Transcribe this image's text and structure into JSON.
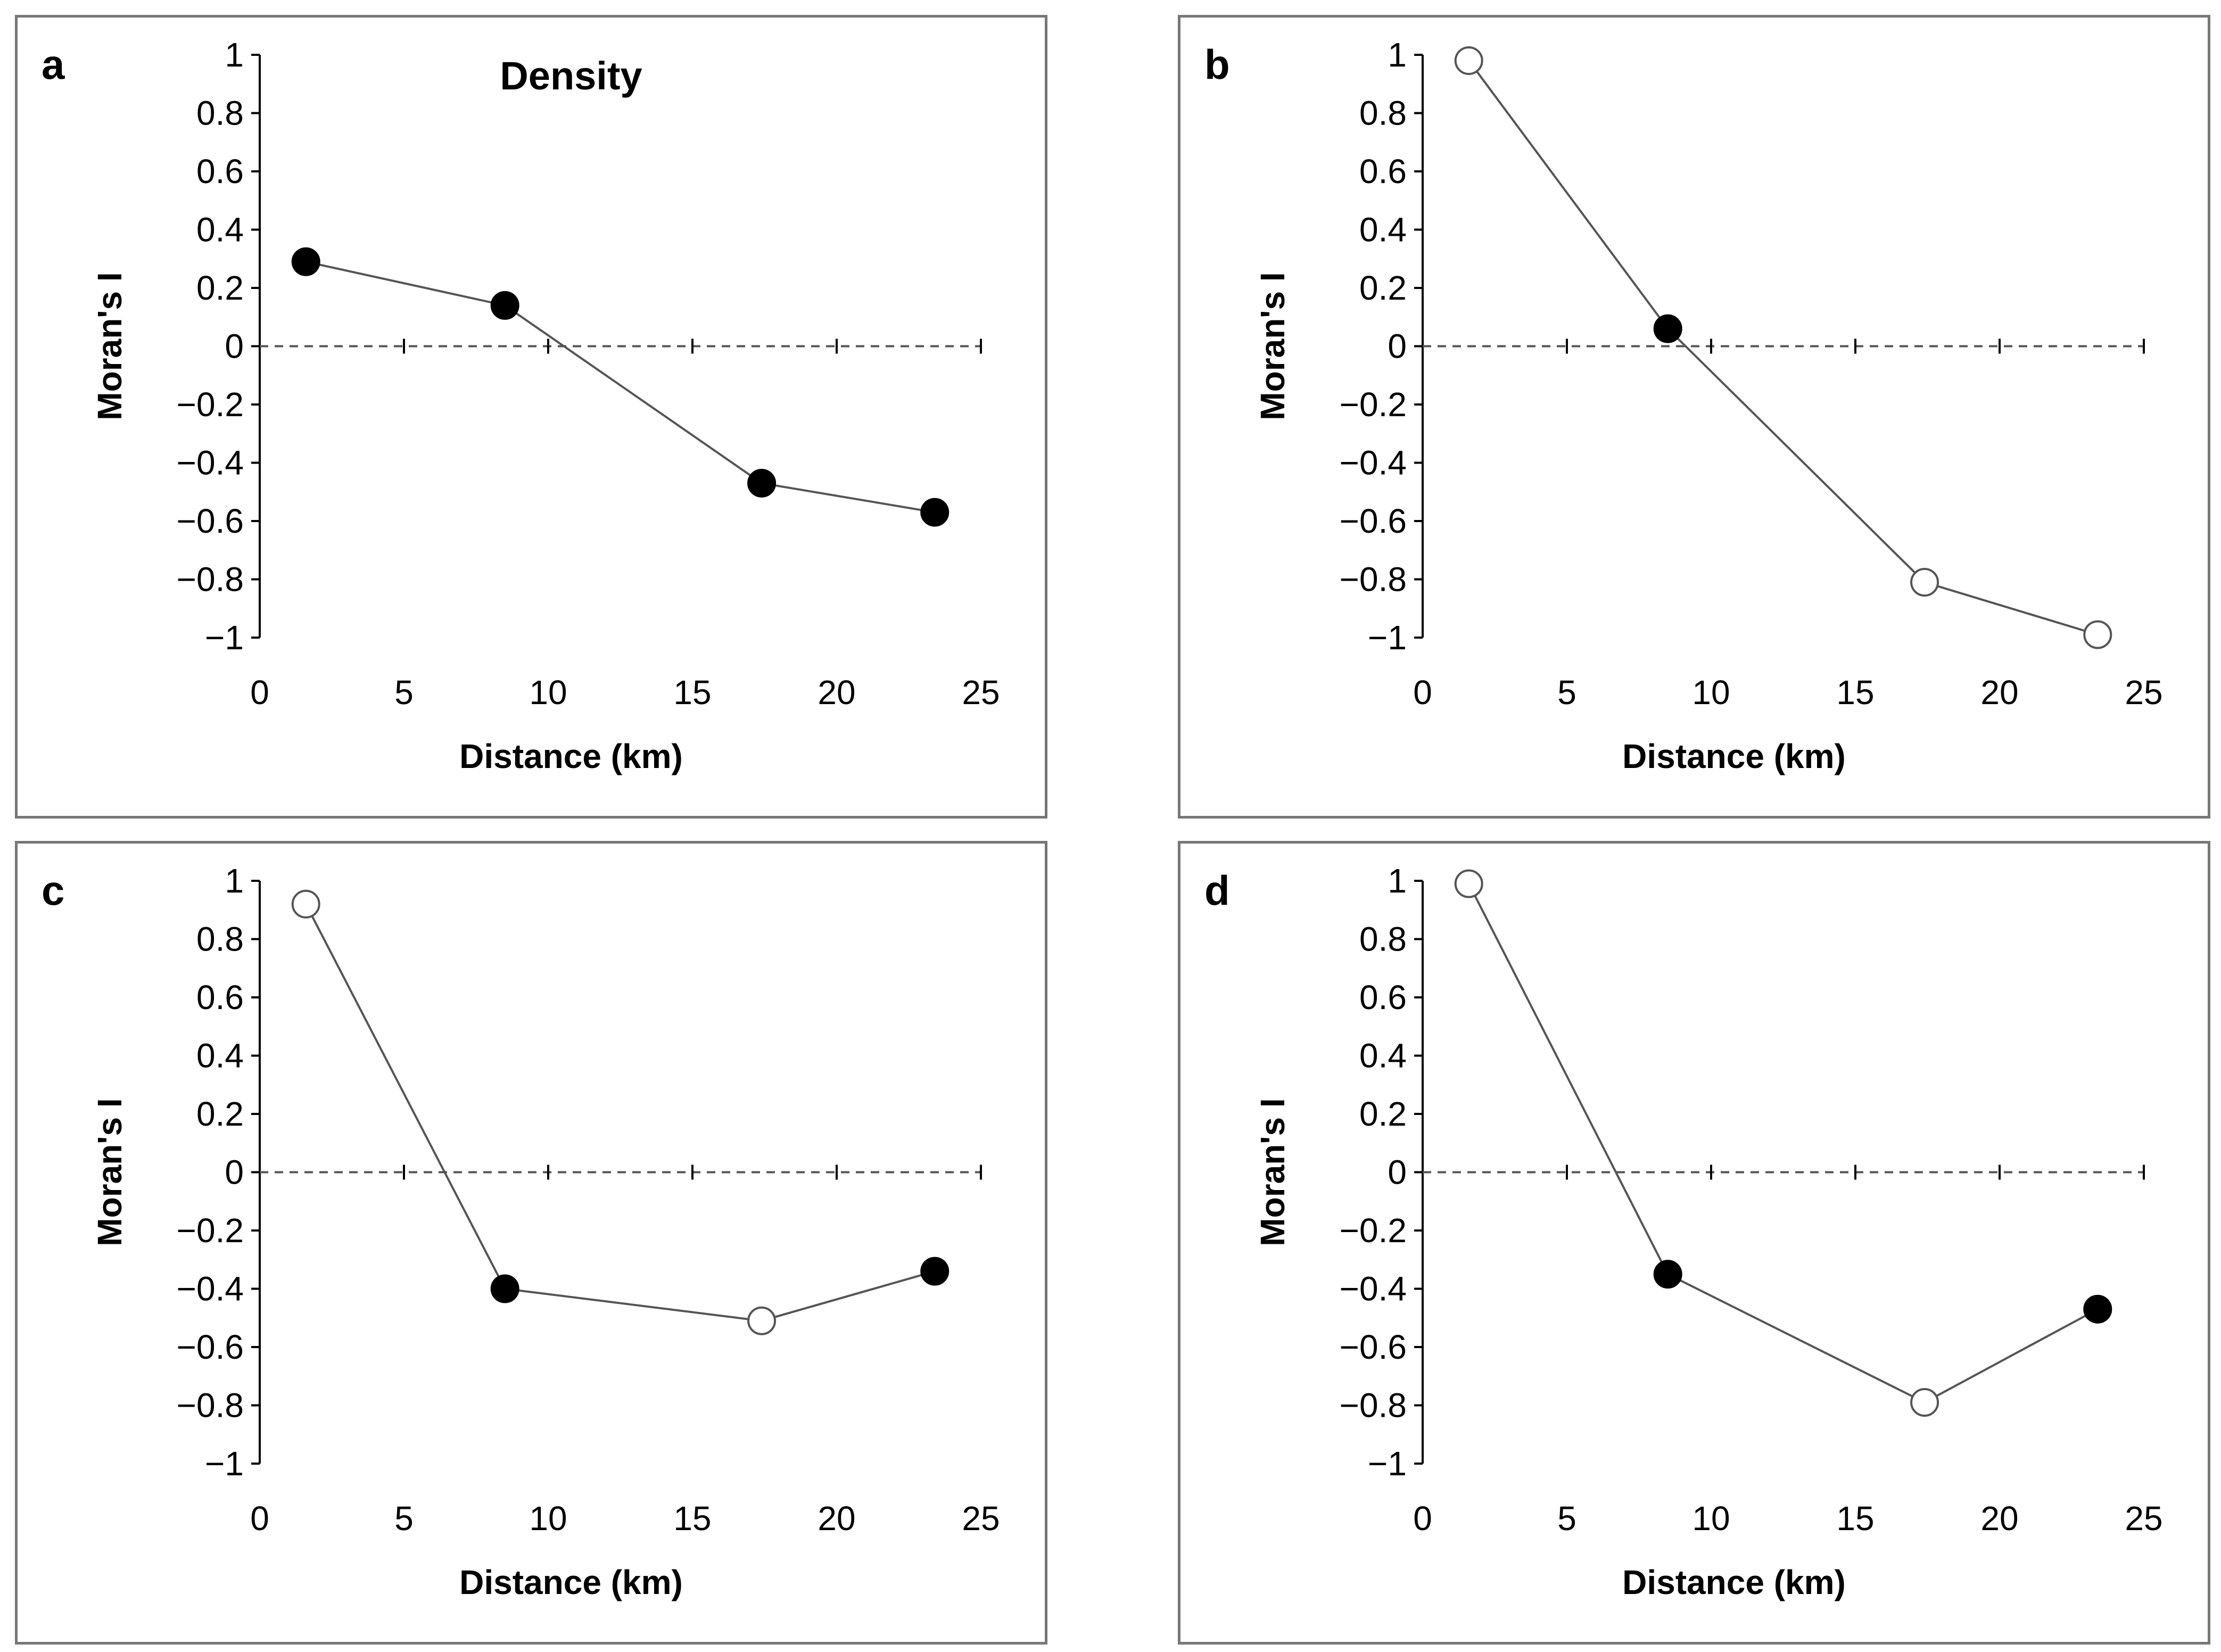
{
  "colors": {
    "border": "#777777",
    "line": "#555555",
    "significant": "#000000",
    "nonsignificant": "#ffffff"
  },
  "chart_data": [
    {
      "panel": "a",
      "type": "line",
      "title": "Density",
      "xlabel": "Distance (km)",
      "ylabel": "Moran's I",
      "xlim": [
        0,
        25
      ],
      "ylim": [
        -1,
        1
      ],
      "xticks": [
        "0",
        "5",
        "10",
        "15",
        "20",
        "25"
      ],
      "yticks": [
        "1",
        "0.8",
        "0.6",
        "0.4",
        "0.2",
        "0",
        "−0.2",
        "−0.4",
        "−0.6",
        "−0.8",
        "−1"
      ],
      "x": [
        1.6,
        8.5,
        17.4,
        23.4
      ],
      "y": [
        0.29,
        0.14,
        -0.47,
        -0.57
      ],
      "significant": [
        true,
        true,
        true,
        true
      ]
    },
    {
      "panel": "b",
      "type": "line",
      "title": "",
      "xlabel": "Distance (km)",
      "ylabel": "Moran's I",
      "xlim": [
        0,
        25
      ],
      "ylim": [
        -1,
        1
      ],
      "xticks": [
        "0",
        "5",
        "10",
        "15",
        "20",
        "25"
      ],
      "yticks": [
        "1",
        "0.8",
        "0.6",
        "0.4",
        "0.2",
        "0",
        "−0.2",
        "−0.4",
        "−0.6",
        "−0.8",
        "−1"
      ],
      "x": [
        1.6,
        8.5,
        17.4,
        23.4
      ],
      "y": [
        0.98,
        0.06,
        -0.81,
        -0.99
      ],
      "significant": [
        false,
        true,
        false,
        false
      ]
    },
    {
      "panel": "c",
      "type": "line",
      "title": "",
      "xlabel": "Distance (km)",
      "ylabel": "Moran's I",
      "xlim": [
        0,
        25
      ],
      "ylim": [
        -1,
        1
      ],
      "xticks": [
        "0",
        "5",
        "10",
        "15",
        "20",
        "25"
      ],
      "yticks": [
        "1",
        "0.8",
        "0.6",
        "0.4",
        "0.2",
        "0",
        "−0.2",
        "−0.4",
        "−0.6",
        "−0.8",
        "−1"
      ],
      "x": [
        1.6,
        8.5,
        17.4,
        23.4
      ],
      "y": [
        0.92,
        -0.4,
        -0.51,
        -0.34
      ],
      "significant": [
        false,
        true,
        false,
        true
      ]
    },
    {
      "panel": "d",
      "type": "line",
      "title": "",
      "xlabel": "Distance (km)",
      "ylabel": "Moran's I",
      "xlim": [
        0,
        25
      ],
      "ylim": [
        -1,
        1
      ],
      "xticks": [
        "0",
        "5",
        "10",
        "15",
        "20",
        "25"
      ],
      "yticks": [
        "1",
        "0.8",
        "0.6",
        "0.4",
        "0.2",
        "0",
        "−0.2",
        "−0.4",
        "−0.6",
        "−0.8",
        "−1"
      ],
      "x": [
        1.6,
        8.5,
        17.4,
        23.4
      ],
      "y": [
        0.99,
        -0.35,
        -0.79,
        -0.47
      ],
      "significant": [
        false,
        true,
        false,
        true
      ]
    }
  ]
}
